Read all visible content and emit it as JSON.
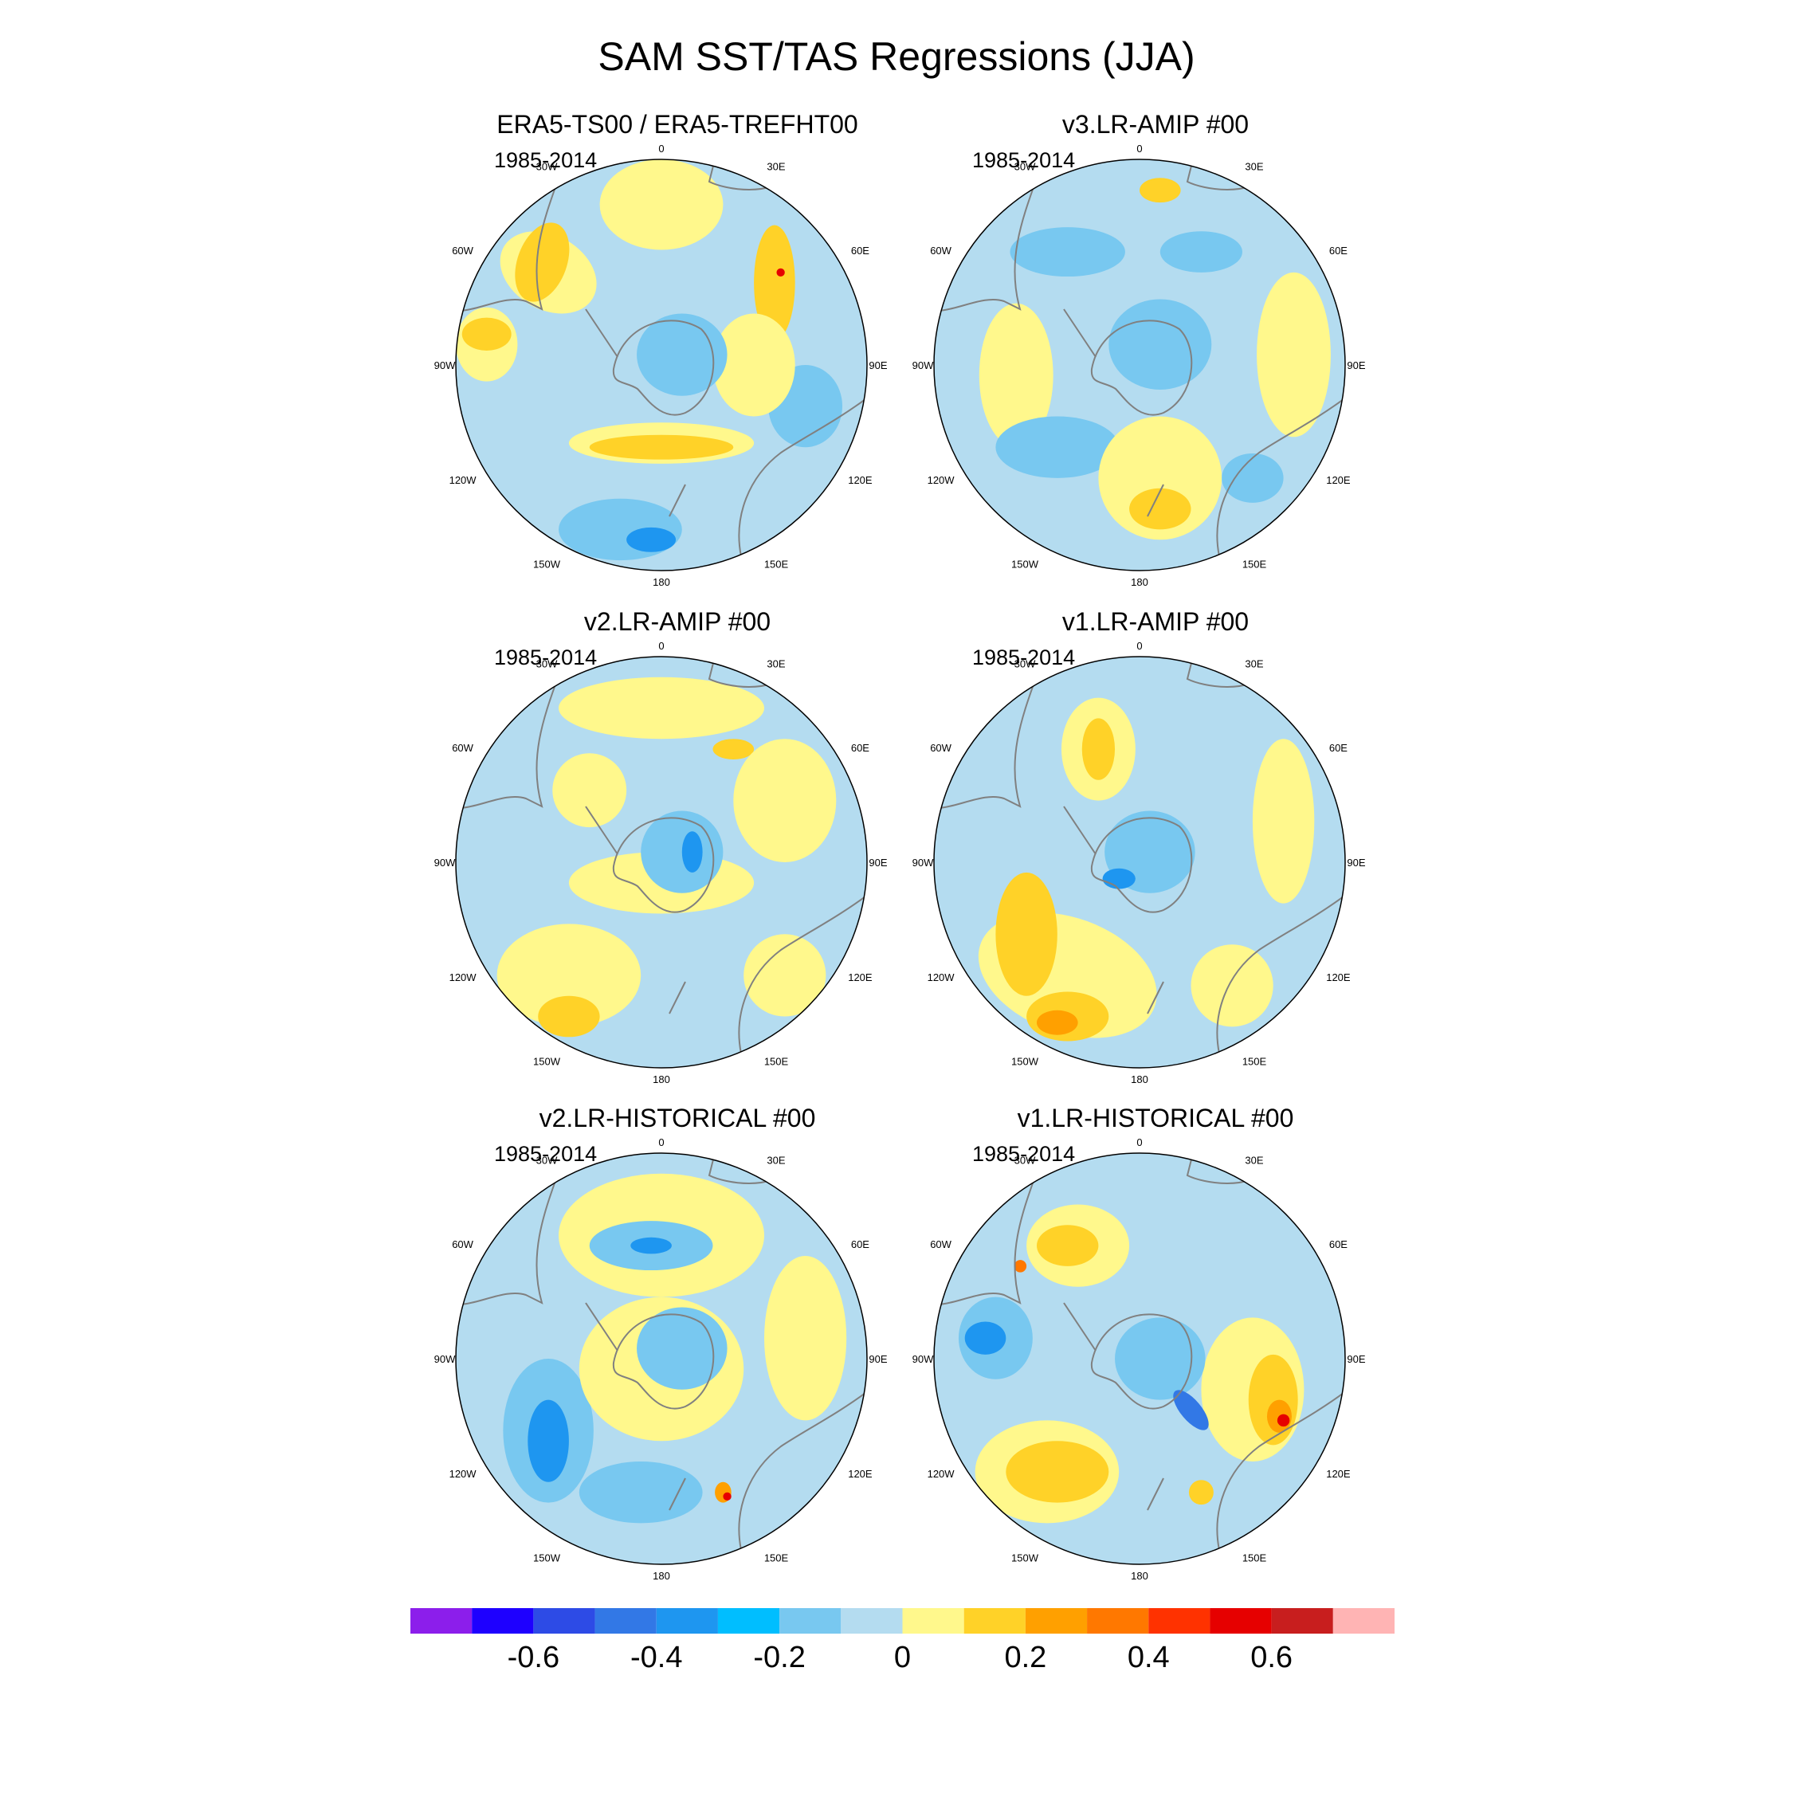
{
  "title": "SAM SST/TAS Regressions (JJA)",
  "lon_labels": [
    "0",
    "30E",
    "60E",
    "90E",
    "120E",
    "150E",
    "180",
    "150W",
    "120W",
    "90W",
    "60W",
    "30W"
  ],
  "palette": {
    "ocean_light_blue": "#b4dcf0",
    "pale_yellow": "#fff88c",
    "light_blue": "#78c8f0",
    "mid_blue": "#1e96f0",
    "blue": "#3278e6",
    "gold": "#ffd228",
    "orange": "#ffa000",
    "red_orange": "#ff7800",
    "red": "#e60000",
    "coast": "#808080"
  },
  "panels": [
    {
      "title": "ERA5-TS00 / ERA5-TREFHT00",
      "period": "1985-2014",
      "pattern": "era5"
    },
    {
      "title": "v3.LR-AMIP  #00",
      "period": "1985-2014",
      "pattern": "v3amip"
    },
    {
      "title": "v2.LR-AMIP  #00",
      "period": "1985-2014",
      "pattern": "v2amip"
    },
    {
      "title": "v1.LR-AMIP  #00",
      "period": "1985-2014",
      "pattern": "v1amip"
    },
    {
      "title": "v2.LR-HISTORICAL  #00",
      "period": "1985-2014",
      "pattern": "v2hist"
    },
    {
      "title": "v1.LR-HISTORICAL  #00",
      "period": "1985-2014",
      "pattern": "v1hist"
    }
  ],
  "colorbar": {
    "colors": [
      "#8c1eeb",
      "#1e00ff",
      "#2d4be6",
      "#3278e6",
      "#1e96f0",
      "#00beff",
      "#78c8f0",
      "#b4dcf0",
      "#fff88c",
      "#ffd228",
      "#ffa000",
      "#ff7800",
      "#ff3200",
      "#e60000",
      "#c81e1e",
      "#ffb4b4"
    ],
    "tick_labels": [
      "-0.6",
      "-0.4",
      "-0.2",
      "0",
      "0.2",
      "0.4",
      "0.6"
    ],
    "tick_values": [
      -0.6,
      -0.4,
      -0.2,
      0,
      0.2,
      0.4,
      0.6
    ],
    "levels": [
      -0.7,
      -0.6,
      -0.5,
      -0.4,
      -0.3,
      -0.2,
      -0.1,
      0,
      0.1,
      0.2,
      0.3,
      0.4,
      0.5,
      0.6,
      0.7
    ],
    "range": [
      -0.8,
      0.8
    ]
  }
}
